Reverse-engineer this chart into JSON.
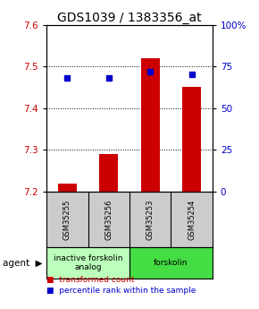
{
  "title": "GDS1039 / 1383356_at",
  "samples": [
    "GSM35255",
    "GSM35256",
    "GSM35253",
    "GSM35254"
  ],
  "bar_values": [
    7.22,
    7.29,
    7.52,
    7.45
  ],
  "percentile_values": [
    68,
    68,
    72,
    70
  ],
  "ylim_left": [
    7.2,
    7.6
  ],
  "ylim_right": [
    0,
    100
  ],
  "yticks_left": [
    7.2,
    7.3,
    7.4,
    7.5,
    7.6
  ],
  "yticks_right": [
    0,
    25,
    50,
    75,
    100
  ],
  "ytick_labels_right": [
    "0",
    "25",
    "50",
    "75",
    "100%"
  ],
  "bar_color": "#cc0000",
  "dot_color": "#0000cc",
  "bar_bottom": 7.2,
  "agent_groups": [
    {
      "label": "inactive forskolin\nanalog",
      "start": 0,
      "end": 2,
      "color": "#bbffbb"
    },
    {
      "label": "forskolin",
      "start": 2,
      "end": 4,
      "color": "#44dd44"
    }
  ],
  "legend_items": [
    {
      "color": "#cc0000",
      "label": "transformed count"
    },
    {
      "color": "#0000cc",
      "label": "percentile rank within the sample"
    }
  ],
  "background_color": "#ffffff",
  "plot_bg": "#ffffff",
  "title_fontsize": 10,
  "tick_fontsize": 7.5,
  "sample_box_color": "#cccccc",
  "bar_width": 0.45
}
